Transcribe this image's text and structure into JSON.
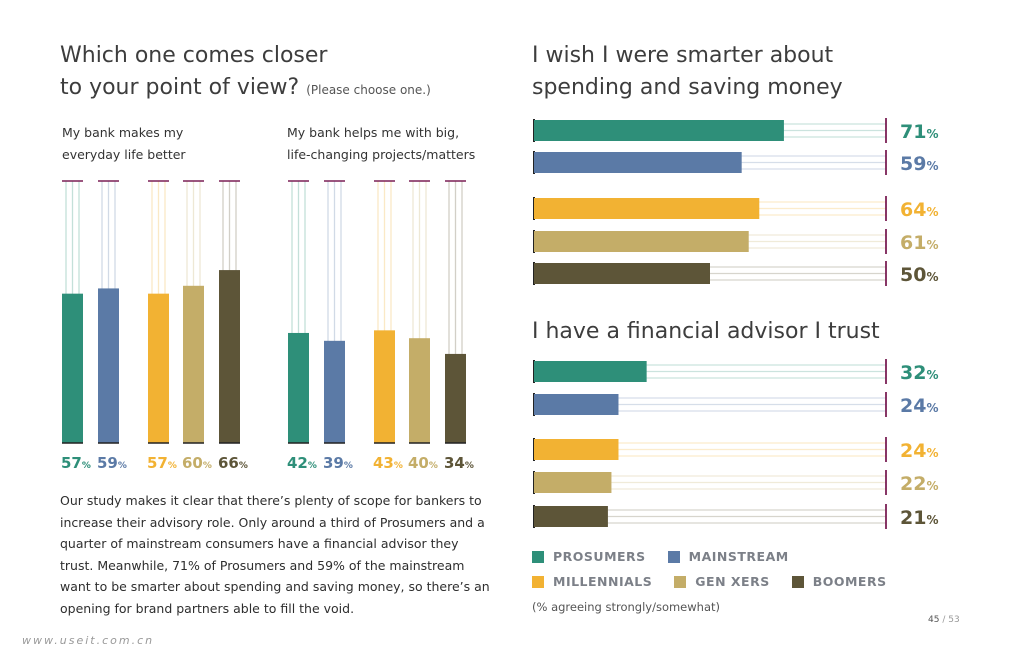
{
  "left_chart": {
    "title_line1": "Which one comes closer",
    "title_line2": "to your point of view?",
    "title_sub": "(Please choose one.)",
    "groups": [
      {
        "label_line1": "My bank makes my",
        "label_line2": "everyday life better"
      },
      {
        "label_line1": "My bank helps me with big,",
        "label_line2": "life-changing projects/matters"
      }
    ]
  },
  "right_top": {
    "title_line1": "I wish I were smarter about",
    "title_line2": "spending and saving money"
  },
  "right_bottom": {
    "title": "I have a financial advisor I trust"
  },
  "body_text": "Our study makes it clear that there’s plenty of scope for bankers to increase their advisory role. Only around a third of Prosumers and a quarter of mainstream consumers have a financial advisor they trust. Meanwhile, 71% of Prosumers and 59% of the mainstream want to be smarter about spending and saving money, so there’s an opening for brand partners able to fill the void.",
  "legend": [
    {
      "name": "PROSUMERS",
      "color": "#2e8f79"
    },
    {
      "name": "MAINSTREAM",
      "color": "#5b7aa6"
    },
    {
      "name": "MILLENNIALS",
      "color": "#f2b233"
    },
    {
      "name": "GEN XERS",
      "color": "#c4ad68"
    },
    {
      "name": "BOOMERS",
      "color": "#5d5538"
    }
  ],
  "note": "(% agreeing strongly/somewhat)",
  "page": {
    "current": "45",
    "total": "/ 53"
  },
  "watermark": "www.useit.com.cn",
  "chart_data": [
    {
      "type": "bar",
      "orientation": "vertical",
      "title": "Which one comes closer to your point of view? (Please choose one.)",
      "categories": [
        "My bank makes my everyday life better",
        "My bank helps me with big, life-changing projects/matters"
      ],
      "series": [
        {
          "name": "PROSUMERS",
          "color": "#2e8f79",
          "values": [
            57,
            42
          ]
        },
        {
          "name": "MAINSTREAM",
          "color": "#5b7aa6",
          "values": [
            59,
            39
          ]
        },
        {
          "name": "MILLENNIALS",
          "color": "#f2b233",
          "values": [
            57,
            43
          ]
        },
        {
          "name": "GEN XERS",
          "color": "#c4ad68",
          "values": [
            60,
            40
          ]
        },
        {
          "name": "BOOMERS",
          "color": "#5d5538",
          "values": [
            66,
            34
          ]
        }
      ],
      "ylim": [
        0,
        100
      ],
      "unit": "%"
    },
    {
      "type": "bar",
      "orientation": "horizontal",
      "title": "I wish I were smarter about spending and saving money",
      "categories": [
        "PROSUMERS",
        "MAINSTREAM",
        "MILLENNIALS",
        "GEN XERS",
        "BOOMERS"
      ],
      "colors": [
        "#2e8f79",
        "#5b7aa6",
        "#f2b233",
        "#c4ad68",
        "#5d5538"
      ],
      "values": [
        71,
        59,
        64,
        61,
        50
      ],
      "xlim": [
        0,
        100
      ],
      "unit": "%"
    },
    {
      "type": "bar",
      "orientation": "horizontal",
      "title": "I have a financial advisor I trust",
      "categories": [
        "PROSUMERS",
        "MAINSTREAM",
        "MILLENNIALS",
        "GEN XERS",
        "BOOMERS"
      ],
      "colors": [
        "#2e8f79",
        "#5b7aa6",
        "#f2b233",
        "#c4ad68",
        "#5d5538"
      ],
      "values": [
        32,
        24,
        24,
        22,
        21
      ],
      "xlim": [
        0,
        100
      ],
      "unit": "%"
    }
  ]
}
